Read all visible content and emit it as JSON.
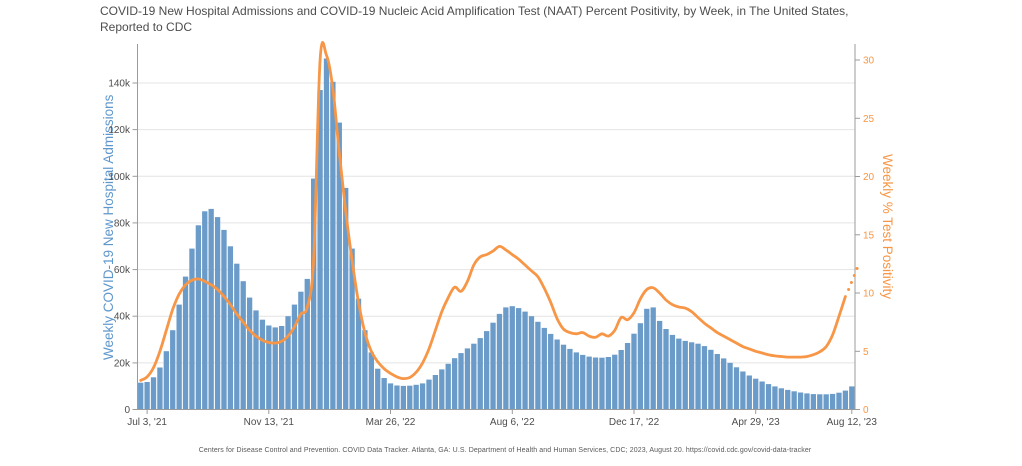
{
  "title": "COVID-19 New Hospital Admissions and COVID-19 Nucleic Acid Amplification Test (NAAT) Percent Positivity, by Week, in The United States, Reported to CDC",
  "footer": "Centers for Disease Control and Prevention. COVID Data Tracker. Atlanta, GA: U.S. Department of Health and Human Services, CDC; 2023, August 20. https://covid.cdc.gov/covid-data-tracker",
  "colors": {
    "bar": "#6a9bc9",
    "line": "#f79646",
    "grid": "#e4e4e4",
    "axis": "#9b9b9b",
    "tick_text": "#4d4d4d",
    "right_tick_text": "#f79646",
    "left_axis_title": "#5e97cc",
    "title_text": "#4d4d4d"
  },
  "chart_data": {
    "type": "combo",
    "title": "COVID-19 New Hospital Admissions and COVID-19 Nucleic Acid Amplification Test (NAAT) Percent Positivity, by Week, in The United States, Reported to CDC",
    "x": {
      "n_weeks": 112,
      "tick_labels": [
        "Jul 3, '21",
        "Nov 13, '21",
        "Mar 26, '22",
        "Aug 6, '22",
        "Dec 17, '22",
        "Apr 29, '23",
        "Aug 12, '23"
      ],
      "tick_indices": [
        1,
        20,
        39,
        58,
        77,
        96,
        111
      ]
    },
    "y_left": {
      "title": "Weekly COVID-19 New Hospital Admissions",
      "tick_labels": [
        "0",
        "20k",
        "40k",
        "60k",
        "80k",
        "100k",
        "120k",
        "140k"
      ],
      "tick_values_thousands": [
        0,
        20,
        40,
        60,
        80,
        100,
        120,
        140
      ],
      "ylim_thousands": [
        0,
        156.7
      ]
    },
    "y_right": {
      "title": "Weekly % Test Positivity",
      "tick_labels": [
        "0",
        "5",
        "10",
        "15",
        "20",
        "25",
        "30"
      ],
      "tick_values_percent": [
        0,
        5,
        10,
        15,
        20,
        25,
        30
      ],
      "ylim_percent": [
        0,
        31.4
      ]
    },
    "series": [
      {
        "name": "Weekly COVID-19 New Hospital Admissions",
        "type": "bar",
        "axis": "left",
        "unit": "thousands",
        "values": [
          11.5,
          11.8,
          13.8,
          18,
          25,
          34,
          45,
          57,
          69,
          79,
          85,
          86,
          82.5,
          77,
          70,
          62.5,
          55,
          48,
          42.5,
          38.5,
          36,
          35.2,
          35.8,
          40,
          45,
          50.5,
          56,
          99,
          137,
          150.5,
          140.5,
          123,
          95,
          69,
          47.5,
          34,
          24.5,
          17.5,
          13.5,
          11.2,
          10.3,
          10.1,
          10.2,
          10.6,
          11.2,
          12.8,
          14.8,
          17.2,
          19.6,
          22,
          24.2,
          26.2,
          28.2,
          30.6,
          33.6,
          37.2,
          41,
          43.8,
          44.3,
          43.5,
          42,
          40,
          37.6,
          35,
          32.4,
          30,
          27.8,
          26,
          24.5,
          23.4,
          22.7,
          22.3,
          22.2,
          22.5,
          23.5,
          25.5,
          28.5,
          32.5,
          37,
          43.2,
          43.8,
          38,
          34.5,
          32,
          30.4,
          29.4,
          28.8,
          28.2,
          27.2,
          25.6,
          23.8,
          21.9,
          20,
          18.1,
          16.3,
          14.6,
          13.2,
          12,
          10.9,
          9.9,
          9.1,
          8.4,
          7.8,
          7.3,
          6.9,
          6.6,
          6.5,
          6.5,
          6.7,
          7.2,
          8.1,
          9.9
        ]
      },
      {
        "name": "Weekly % Test Positivity",
        "type": "line",
        "axis": "right",
        "unit": "percent",
        "values": [
          2.5,
          2.8,
          3.6,
          5.0,
          6.8,
          8.6,
          9.9,
          10.7,
          11.1,
          11.2,
          11.0,
          10.7,
          10.3,
          9.7,
          9.0,
          8.2,
          7.5,
          6.8,
          6.3,
          5.95,
          5.75,
          5.7,
          5.85,
          6.3,
          7.1,
          8.2,
          8.8,
          13,
          30.0,
          30.4,
          27.5,
          22,
          17,
          12.8,
          9.2,
          6.6,
          5.0,
          4.1,
          3.5,
          3.1,
          2.8,
          2.65,
          2.75,
          3.2,
          4.0,
          5.2,
          6.8,
          8.4,
          9.6,
          10.5,
          10.15,
          11.0,
          12.4,
          13.1,
          13.3,
          13.6,
          14.0,
          13.7,
          13.3,
          12.9,
          12.4,
          11.9,
          11.4,
          10.4,
          9.2,
          7.8,
          6.9,
          6.6,
          6.5,
          6.6,
          6.3,
          6.2,
          6.5,
          6.3,
          6.8,
          7.9,
          7.7,
          8.3,
          9.5,
          10.3,
          10.45,
          10.0,
          9.4,
          9.0,
          8.8,
          8.7,
          8.4,
          7.9,
          7.4,
          7.0,
          6.6,
          6.3,
          6.0,
          5.7,
          5.4,
          5.2,
          5.0,
          4.85,
          4.7,
          4.6,
          4.55,
          4.5,
          4.5,
          4.5,
          4.55,
          4.7,
          4.95,
          5.4,
          6.4,
          8.0,
          9.7,
          10.9
        ],
        "dotted_tail_percent": [
          10.3,
          10.9,
          11.5,
          12.1
        ]
      }
    ]
  }
}
